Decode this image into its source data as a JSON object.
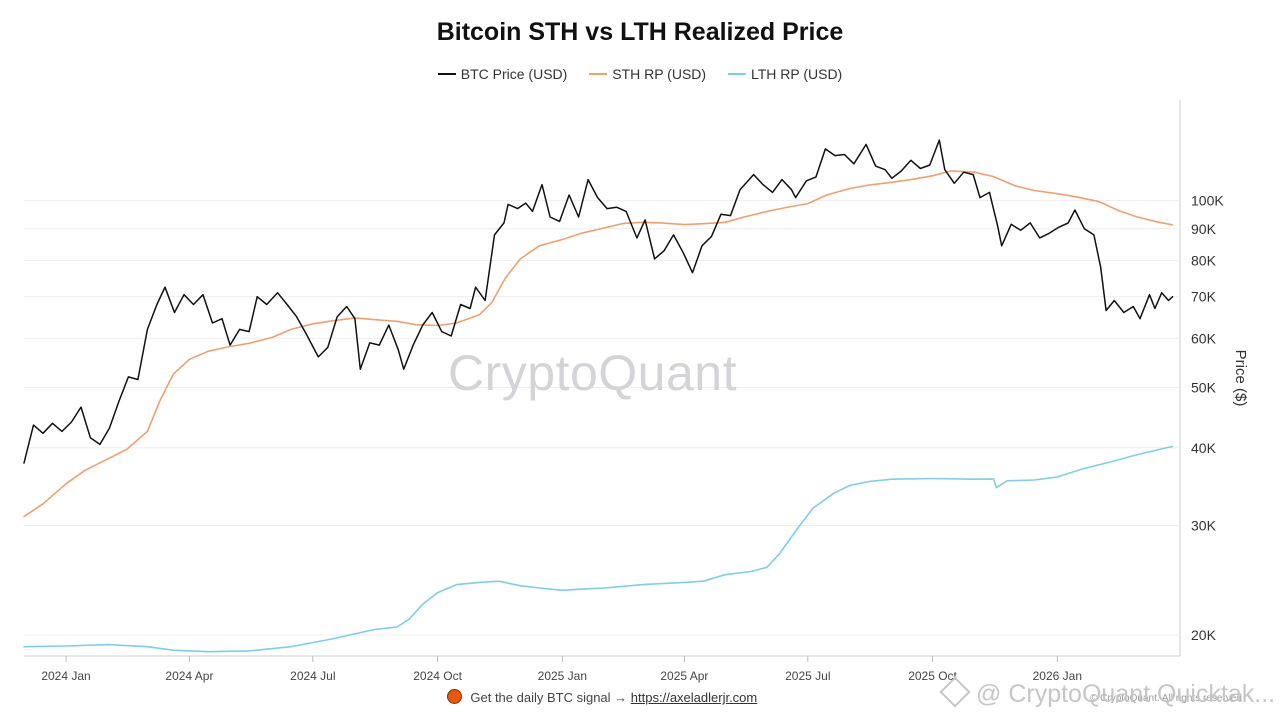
{
  "chart_data": {
    "type": "line",
    "title": "Bitcoin STH vs LTH Realized Price",
    "ylabel": "Price ($)",
    "xlabel": "",
    "yscale": "log",
    "ylim": [
      18500,
      145000
    ],
    "x_range": [
      "2023-12-01",
      "2026-03-31"
    ],
    "y_ticks": [
      {
        "value": 20000,
        "label": "20K"
      },
      {
        "value": 30000,
        "label": "30K"
      },
      {
        "value": 40000,
        "label": "40K"
      },
      {
        "value": 50000,
        "label": "50K"
      },
      {
        "value": 60000,
        "label": "60K"
      },
      {
        "value": 70000,
        "label": "70K"
      },
      {
        "value": 80000,
        "label": "80K"
      },
      {
        "value": 90000,
        "label": "90K"
      },
      {
        "value": 100000,
        "label": "100K"
      }
    ],
    "x_ticks": [
      {
        "date": "2024-01-01",
        "label": "2024 Jan"
      },
      {
        "date": "2024-04-01",
        "label": "2024 Apr"
      },
      {
        "date": "2024-07-01",
        "label": "2024 Jul"
      },
      {
        "date": "2024-10-01",
        "label": "2024 Oct"
      },
      {
        "date": "2025-01-01",
        "label": "2025 Jan"
      },
      {
        "date": "2025-04-01",
        "label": "2025 Apr"
      },
      {
        "date": "2025-07-01",
        "label": "2025 Jul"
      },
      {
        "date": "2025-10-01",
        "label": "2025 Oct"
      },
      {
        "date": "2026-01-01",
        "label": "2026 Jan"
      }
    ],
    "series": [
      {
        "name": "BTC Price (USD)",
        "color": "#111111",
        "points": [
          [
            "2023-12-01",
            37800
          ],
          [
            "2023-12-08",
            43500
          ],
          [
            "2023-12-15",
            42200
          ],
          [
            "2023-12-22",
            43800
          ],
          [
            "2023-12-29",
            42500
          ],
          [
            "2024-01-05",
            44000
          ],
          [
            "2024-01-12",
            46500
          ],
          [
            "2024-01-19",
            41500
          ],
          [
            "2024-01-26",
            40500
          ],
          [
            "2024-02-02",
            43000
          ],
          [
            "2024-02-09",
            47500
          ],
          [
            "2024-02-16",
            52000
          ],
          [
            "2024-02-23",
            51500
          ],
          [
            "2024-03-01",
            62000
          ],
          [
            "2024-03-08",
            68000
          ],
          [
            "2024-03-14",
            72500
          ],
          [
            "2024-03-21",
            66000
          ],
          [
            "2024-03-28",
            70500
          ],
          [
            "2024-04-04",
            68000
          ],
          [
            "2024-04-11",
            70500
          ],
          [
            "2024-04-18",
            63500
          ],
          [
            "2024-04-25",
            64500
          ],
          [
            "2024-05-01",
            58500
          ],
          [
            "2024-05-08",
            62000
          ],
          [
            "2024-05-15",
            61500
          ],
          [
            "2024-05-21",
            70000
          ],
          [
            "2024-05-28",
            68000
          ],
          [
            "2024-06-05",
            71000
          ],
          [
            "2024-06-12",
            68000
          ],
          [
            "2024-06-19",
            65000
          ],
          [
            "2024-06-26",
            61000
          ],
          [
            "2024-07-05",
            56000
          ],
          [
            "2024-07-12",
            58000
          ],
          [
            "2024-07-19",
            65000
          ],
          [
            "2024-07-26",
            67500
          ],
          [
            "2024-08-01",
            64500
          ],
          [
            "2024-08-05",
            53500
          ],
          [
            "2024-08-12",
            59000
          ],
          [
            "2024-08-19",
            58500
          ],
          [
            "2024-08-26",
            63000
          ],
          [
            "2024-09-02",
            57500
          ],
          [
            "2024-09-06",
            53500
          ],
          [
            "2024-09-13",
            58500
          ],
          [
            "2024-09-20",
            63000
          ],
          [
            "2024-09-27",
            66000
          ],
          [
            "2024-10-04",
            61500
          ],
          [
            "2024-10-11",
            60500
          ],
          [
            "2024-10-18",
            68000
          ],
          [
            "2024-10-25",
            67000
          ],
          [
            "2024-10-29",
            72500
          ],
          [
            "2024-11-05",
            69000
          ],
          [
            "2024-11-12",
            88000
          ],
          [
            "2024-11-19",
            92000
          ],
          [
            "2024-11-22",
            98500
          ],
          [
            "2024-11-29",
            97000
          ],
          [
            "2024-12-05",
            99000
          ],
          [
            "2024-12-10",
            96000
          ],
          [
            "2024-12-17",
            106000
          ],
          [
            "2024-12-23",
            94000
          ],
          [
            "2024-12-30",
            92500
          ],
          [
            "2025-01-06",
            102000
          ],
          [
            "2025-01-13",
            94000
          ],
          [
            "2025-01-20",
            108000
          ],
          [
            "2025-01-27",
            101000
          ],
          [
            "2025-02-03",
            97000
          ],
          [
            "2025-02-10",
            97500
          ],
          [
            "2025-02-17",
            96000
          ],
          [
            "2025-02-25",
            87000
          ],
          [
            "2025-03-03",
            93000
          ],
          [
            "2025-03-10",
            80500
          ],
          [
            "2025-03-17",
            83000
          ],
          [
            "2025-03-24",
            88000
          ],
          [
            "2025-03-31",
            82500
          ],
          [
            "2025-04-07",
            76500
          ],
          [
            "2025-04-14",
            84500
          ],
          [
            "2025-04-21",
            87500
          ],
          [
            "2025-04-28",
            95000
          ],
          [
            "2025-05-05",
            94500
          ],
          [
            "2025-05-12",
            104000
          ],
          [
            "2025-05-22",
            110000
          ],
          [
            "2025-05-29",
            106000
          ],
          [
            "2025-06-05",
            103000
          ],
          [
            "2025-06-12",
            108000
          ],
          [
            "2025-06-19",
            104000
          ],
          [
            "2025-06-22",
            101000
          ],
          [
            "2025-06-30",
            107500
          ],
          [
            "2025-07-07",
            109000
          ],
          [
            "2025-07-14",
            121000
          ],
          [
            "2025-07-21",
            118000
          ],
          [
            "2025-07-28",
            118500
          ],
          [
            "2025-08-04",
            114500
          ],
          [
            "2025-08-13",
            123000
          ],
          [
            "2025-08-20",
            113500
          ],
          [
            "2025-08-27",
            112000
          ],
          [
            "2025-09-01",
            108500
          ],
          [
            "2025-09-08",
            111500
          ],
          [
            "2025-09-15",
            116000
          ],
          [
            "2025-09-22",
            112500
          ],
          [
            "2025-09-29",
            114000
          ],
          [
            "2025-10-06",
            125000
          ],
          [
            "2025-10-10",
            112000
          ],
          [
            "2025-10-17",
            106500
          ],
          [
            "2025-10-24",
            111000
          ],
          [
            "2025-10-31",
            110000
          ],
          [
            "2025-11-05",
            101000
          ],
          [
            "2025-11-12",
            103000
          ],
          [
            "2025-11-18",
            91000
          ],
          [
            "2025-11-21",
            84500
          ],
          [
            "2025-11-28",
            91500
          ],
          [
            "2025-12-05",
            89500
          ],
          [
            "2025-12-12",
            92000
          ],
          [
            "2025-12-19",
            87000
          ],
          [
            "2025-12-26",
            88500
          ],
          [
            "2026-01-02",
            90500
          ],
          [
            "2026-01-09",
            92000
          ],
          [
            "2026-01-14",
            96500
          ],
          [
            "2026-01-21",
            90000
          ],
          [
            "2026-01-28",
            88000
          ],
          [
            "2026-02-02",
            78000
          ],
          [
            "2026-02-06",
            66500
          ],
          [
            "2026-02-12",
            69000
          ],
          [
            "2026-02-19",
            66000
          ],
          [
            "2026-02-26",
            67500
          ],
          [
            "2026-03-03",
            64500
          ],
          [
            "2026-03-10",
            70500
          ],
          [
            "2026-03-14",
            67000
          ],
          [
            "2026-03-19",
            71000
          ],
          [
            "2026-03-24",
            69000
          ],
          [
            "2026-03-27",
            70000
          ]
        ]
      },
      {
        "name": "STH RP (USD)",
        "color": "#f0a070",
        "points": [
          [
            "2023-12-01",
            31000
          ],
          [
            "2023-12-15",
            32500
          ],
          [
            "2024-01-01",
            35000
          ],
          [
            "2024-01-15",
            36800
          ],
          [
            "2024-02-01",
            38400
          ],
          [
            "2024-02-15",
            39800
          ],
          [
            "2024-03-01",
            42500
          ],
          [
            "2024-03-10",
            47500
          ],
          [
            "2024-03-20",
            52500
          ],
          [
            "2024-04-01",
            55500
          ],
          [
            "2024-04-15",
            57200
          ],
          [
            "2024-05-01",
            58200
          ],
          [
            "2024-05-15",
            58900
          ],
          [
            "2024-06-01",
            60200
          ],
          [
            "2024-06-15",
            62000
          ],
          [
            "2024-07-01",
            63300
          ],
          [
            "2024-07-15",
            64000
          ],
          [
            "2024-08-01",
            64700
          ],
          [
            "2024-08-15",
            64300
          ],
          [
            "2024-09-01",
            63900
          ],
          [
            "2024-09-15",
            63100
          ],
          [
            "2024-10-01",
            62900
          ],
          [
            "2024-10-15",
            63500
          ],
          [
            "2024-11-01",
            65500
          ],
          [
            "2024-11-10",
            68500
          ],
          [
            "2024-11-20",
            75000
          ],
          [
            "2024-12-01",
            80500
          ],
          [
            "2024-12-15",
            84500
          ],
          [
            "2025-01-01",
            86500
          ],
          [
            "2025-01-15",
            88500
          ],
          [
            "2025-02-01",
            90300
          ],
          [
            "2025-02-15",
            91800
          ],
          [
            "2025-03-01",
            92200
          ],
          [
            "2025-03-15",
            92000
          ],
          [
            "2025-04-01",
            91400
          ],
          [
            "2025-04-15",
            91700
          ],
          [
            "2025-05-01",
            92200
          ],
          [
            "2025-05-15",
            94000
          ],
          [
            "2025-06-01",
            96000
          ],
          [
            "2025-06-15",
            97400
          ],
          [
            "2025-07-01",
            98800
          ],
          [
            "2025-07-15",
            102000
          ],
          [
            "2025-08-01",
            104500
          ],
          [
            "2025-08-15",
            105800
          ],
          [
            "2025-09-01",
            106900
          ],
          [
            "2025-09-15",
            108000
          ],
          [
            "2025-10-01",
            109500
          ],
          [
            "2025-10-15",
            111500
          ],
          [
            "2025-11-01",
            111000
          ],
          [
            "2025-11-15",
            109200
          ],
          [
            "2025-12-01",
            105500
          ],
          [
            "2025-12-15",
            103700
          ],
          [
            "2026-01-01",
            102500
          ],
          [
            "2026-01-15",
            101300
          ],
          [
            "2026-02-01",
            99500
          ],
          [
            "2026-02-15",
            96300
          ],
          [
            "2026-03-01",
            94000
          ],
          [
            "2026-03-15",
            92400
          ],
          [
            "2026-03-27",
            91300
          ]
        ]
      },
      {
        "name": "LTH RP (USD)",
        "color": "#7fcde8",
        "points": [
          [
            "2023-12-01",
            19150
          ],
          [
            "2024-01-01",
            19200
          ],
          [
            "2024-02-01",
            19300
          ],
          [
            "2024-03-01",
            19150
          ],
          [
            "2024-03-20",
            18900
          ],
          [
            "2024-04-15",
            18800
          ],
          [
            "2024-05-15",
            18850
          ],
          [
            "2024-06-15",
            19150
          ],
          [
            "2024-07-15",
            19700
          ],
          [
            "2024-08-15",
            20400
          ],
          [
            "2024-09-01",
            20600
          ],
          [
            "2024-09-10",
            21200
          ],
          [
            "2024-09-20",
            22400
          ],
          [
            "2024-10-01",
            23400
          ],
          [
            "2024-10-15",
            24100
          ],
          [
            "2024-11-01",
            24300
          ],
          [
            "2024-11-15",
            24400
          ],
          [
            "2024-12-01",
            24000
          ],
          [
            "2024-12-15",
            23800
          ],
          [
            "2025-01-01",
            23600
          ],
          [
            "2025-01-15",
            23700
          ],
          [
            "2025-02-01",
            23800
          ],
          [
            "2025-03-01",
            24100
          ],
          [
            "2025-04-01",
            24300
          ],
          [
            "2025-04-15",
            24400
          ],
          [
            "2025-05-01",
            25000
          ],
          [
            "2025-05-20",
            25300
          ],
          [
            "2025-06-01",
            25700
          ],
          [
            "2025-06-10",
            27000
          ],
          [
            "2025-06-25",
            30000
          ],
          [
            "2025-07-05",
            32000
          ],
          [
            "2025-07-20",
            33800
          ],
          [
            "2025-08-01",
            34800
          ],
          [
            "2025-08-15",
            35300
          ],
          [
            "2025-09-01",
            35600
          ],
          [
            "2025-10-01",
            35700
          ],
          [
            "2025-11-01",
            35600
          ],
          [
            "2025-11-15",
            35650
          ],
          [
            "2025-11-17",
            34500
          ],
          [
            "2025-11-25",
            35400
          ],
          [
            "2025-12-15",
            35500
          ],
          [
            "2026-01-01",
            35900
          ],
          [
            "2026-01-20",
            37000
          ],
          [
            "2026-02-10",
            38000
          ],
          [
            "2026-03-01",
            39000
          ],
          [
            "2026-03-27",
            40200
          ]
        ]
      }
    ]
  },
  "legend": {
    "items": [
      {
        "label": "BTC Price (USD)",
        "color": "#111111"
      },
      {
        "label": "STH RP (USD)",
        "color": "#f0a070"
      },
      {
        "label": "LTH RP (USD)",
        "color": "#7fcde8"
      }
    ]
  },
  "watermark": {
    "text": "CryptoQuant"
  },
  "footer": {
    "text": "Get the daily BTC signal →",
    "link_text": "https://axeladlerjr.com",
    "credit": "© CryptoQuant. All rights reserved",
    "platform_mark": "@ CryptoQuant Quicktak..."
  }
}
